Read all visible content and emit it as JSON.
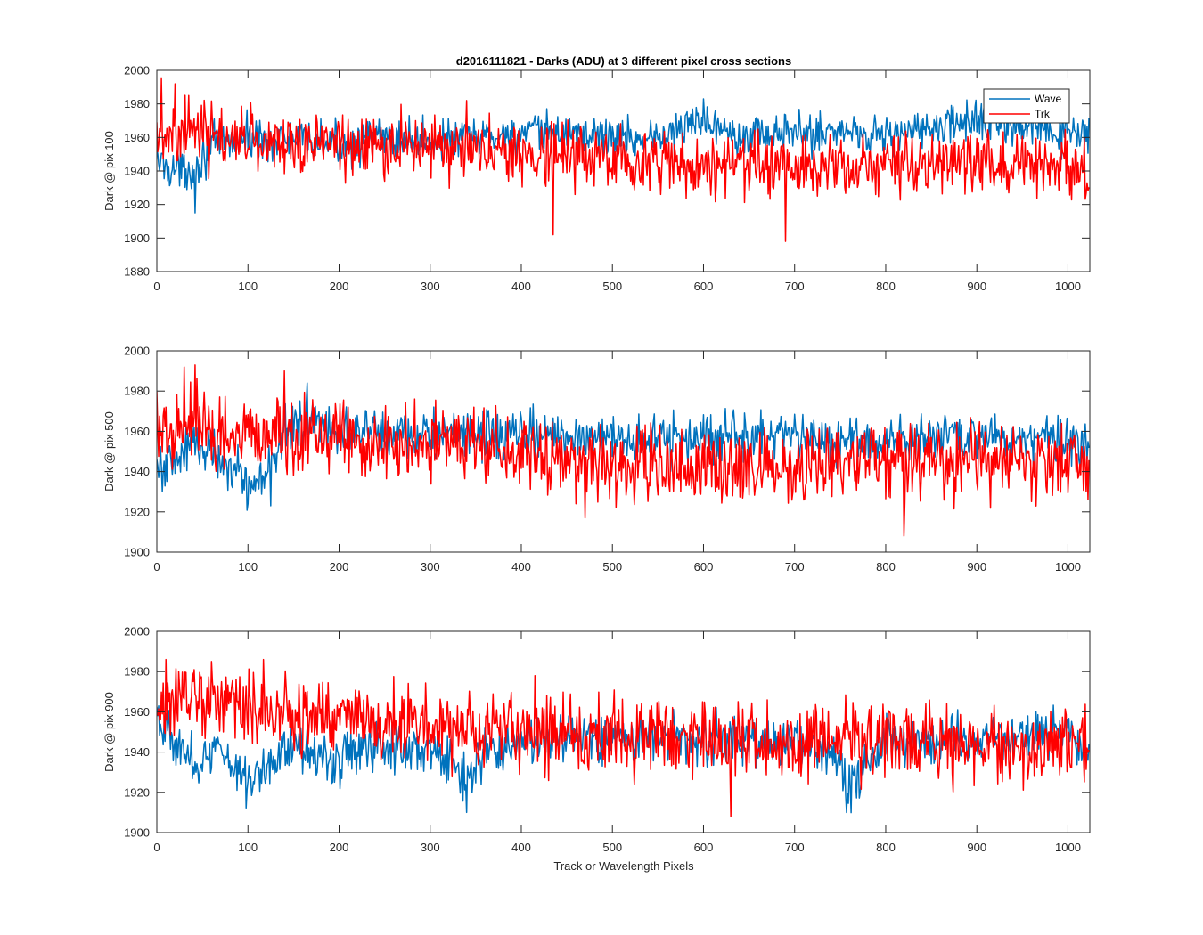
{
  "figure": {
    "title": "d2016111821 - Darks (ADU) at 3 different pixel cross sections",
    "xlabel": "Track or Wavelength Pixels"
  },
  "chart_data": [
    {
      "type": "line",
      "ylabel": "Dark @ pix 100",
      "xlim": [
        0,
        1024
      ],
      "ylim": [
        1880,
        2000
      ],
      "xticks": [
        0,
        100,
        200,
        300,
        400,
        500,
        600,
        700,
        800,
        900,
        1000
      ],
      "yticks": [
        1880,
        1900,
        1920,
        1940,
        1960,
        1980,
        2000
      ],
      "legend": {
        "position": "top-right",
        "entries": [
          "Wave",
          "Trk"
        ]
      },
      "series": [
        {
          "name": "Wave",
          "color": "#0072BD",
          "anchors": [
            [
              0,
              1946
            ],
            [
              15,
              1942
            ],
            [
              30,
              1940
            ],
            [
              45,
              1944
            ],
            [
              60,
              1955
            ],
            [
              100,
              1960
            ],
            [
              150,
              1958
            ],
            [
              200,
              1956
            ],
            [
              250,
              1960
            ],
            [
              300,
              1958
            ],
            [
              350,
              1960
            ],
            [
              400,
              1962
            ],
            [
              450,
              1963
            ],
            [
              500,
              1960
            ],
            [
              550,
              1960
            ],
            [
              580,
              1965
            ],
            [
              600,
              1972
            ],
            [
              620,
              1966
            ],
            [
              650,
              1962
            ],
            [
              700,
              1962
            ],
            [
              750,
              1964
            ],
            [
              800,
              1962
            ],
            [
              850,
              1965
            ],
            [
              900,
              1970
            ],
            [
              950,
              1966
            ],
            [
              1000,
              1962
            ],
            [
              1024,
              1960
            ]
          ],
          "noise": 6,
          "spikes": [
            [
              42,
              1915
            ],
            [
              600,
              1983
            ],
            [
              905,
              1980
            ]
          ]
        },
        {
          "name": "Trk",
          "color": "#FF0000",
          "anchors": [
            [
              0,
              1962
            ],
            [
              30,
              1968
            ],
            [
              60,
              1960
            ],
            [
              100,
              1958
            ],
            [
              200,
              1955
            ],
            [
              300,
              1955
            ],
            [
              400,
              1950
            ],
            [
              500,
              1947
            ],
            [
              600,
              1944
            ],
            [
              700,
              1944
            ],
            [
              800,
              1944
            ],
            [
              900,
              1945
            ],
            [
              1000,
              1944
            ],
            [
              1024,
              1940
            ]
          ],
          "noise": 9,
          "spikes": [
            [
              5,
              1995
            ],
            [
              20,
              1992
            ],
            [
              35,
              1985
            ],
            [
              340,
              1982
            ],
            [
              435,
              1902
            ],
            [
              690,
              1898
            ]
          ]
        }
      ]
    },
    {
      "type": "line",
      "ylabel": "Dark @ pix 500",
      "xlim": [
        0,
        1024
      ],
      "ylim": [
        1900,
        2000
      ],
      "xticks": [
        0,
        100,
        200,
        300,
        400,
        500,
        600,
        700,
        800,
        900,
        1000
      ],
      "yticks": [
        1900,
        1920,
        1940,
        1960,
        1980,
        2000
      ],
      "series": [
        {
          "name": "Wave",
          "color": "#0072BD",
          "anchors": [
            [
              0,
              1942
            ],
            [
              20,
              1945
            ],
            [
              40,
              1955
            ],
            [
              60,
              1950
            ],
            [
              80,
              1945
            ],
            [
              100,
              1932
            ],
            [
              120,
              1938
            ],
            [
              140,
              1960
            ],
            [
              170,
              1965
            ],
            [
              200,
              1960
            ],
            [
              300,
              1958
            ],
            [
              400,
              1958
            ],
            [
              500,
              1958
            ],
            [
              550,
              1955
            ],
            [
              600,
              1958
            ],
            [
              700,
              1956
            ],
            [
              800,
              1955
            ],
            [
              900,
              1958
            ],
            [
              1000,
              1957
            ],
            [
              1024,
              1955
            ]
          ],
          "noise": 6,
          "spikes": [
            [
              165,
              1984
            ],
            [
              100,
              1924
            ],
            [
              125,
              1923
            ]
          ]
        },
        {
          "name": "Trk",
          "color": "#FF0000",
          "anchors": [
            [
              0,
              1960
            ],
            [
              40,
              1965
            ],
            [
              60,
              1960
            ],
            [
              100,
              1958
            ],
            [
              200,
              1956
            ],
            [
              300,
              1955
            ],
            [
              400,
              1950
            ],
            [
              500,
              1945
            ],
            [
              600,
              1942
            ],
            [
              700,
              1942
            ],
            [
              800,
              1945
            ],
            [
              900,
              1945
            ],
            [
              1000,
              1945
            ],
            [
              1024,
              1942
            ]
          ],
          "noise": 9,
          "spikes": [
            [
              30,
              1992
            ],
            [
              42,
              1993
            ],
            [
              140,
              1990
            ],
            [
              470,
              1917
            ],
            [
              820,
              1908
            ]
          ]
        }
      ]
    },
    {
      "type": "line",
      "ylabel": "Dark @ pix 900",
      "xlim": [
        0,
        1024
      ],
      "ylim": [
        1900,
        2000
      ],
      "xticks": [
        0,
        100,
        200,
        300,
        400,
        500,
        600,
        700,
        800,
        900,
        1000
      ],
      "yticks": [
        1900,
        1920,
        1940,
        1960,
        1980,
        2000
      ],
      "series": [
        {
          "name": "Wave",
          "color": "#0072BD",
          "anchors": [
            [
              0,
              1962
            ],
            [
              15,
              1948
            ],
            [
              30,
              1938
            ],
            [
              50,
              1935
            ],
            [
              70,
              1942
            ],
            [
              100,
              1925
            ],
            [
              150,
              1945
            ],
            [
              200,
              1935
            ],
            [
              250,
              1945
            ],
            [
              300,
              1940
            ],
            [
              320,
              1935
            ],
            [
              340,
              1925
            ],
            [
              360,
              1940
            ],
            [
              400,
              1945
            ],
            [
              500,
              1948
            ],
            [
              600,
              1946
            ],
            [
              700,
              1945
            ],
            [
              740,
              1940
            ],
            [
              760,
              1925
            ],
            [
              780,
              1935
            ],
            [
              800,
              1945
            ],
            [
              900,
              1948
            ],
            [
              1000,
              1950
            ],
            [
              1024,
              1938
            ]
          ],
          "noise": 6,
          "spikes": [
            [
              340,
              1910
            ],
            [
              757,
              1910
            ]
          ]
        },
        {
          "name": "Trk",
          "color": "#FF0000",
          "anchors": [
            [
              0,
              1962
            ],
            [
              50,
              1965
            ],
            [
              100,
              1960
            ],
            [
              150,
              1958
            ],
            [
              200,
              1958
            ],
            [
              300,
              1954
            ],
            [
              400,
              1950
            ],
            [
              500,
              1948
            ],
            [
              600,
              1946
            ],
            [
              700,
              1946
            ],
            [
              800,
              1944
            ],
            [
              900,
              1944
            ],
            [
              1000,
              1944
            ],
            [
              1024,
              1942
            ]
          ],
          "noise": 9,
          "spikes": [
            [
              10,
              1986
            ],
            [
              60,
              1985
            ],
            [
              117,
              1986
            ],
            [
              415,
              1978
            ],
            [
              630,
              1908
            ]
          ]
        }
      ]
    }
  ]
}
